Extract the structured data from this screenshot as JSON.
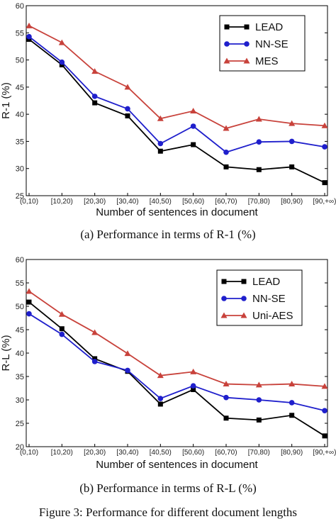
{
  "figure_caption": "Figure 3: Performance for different document lengths",
  "chart_data": [
    {
      "type": "line",
      "caption": "(a) Performance in terms of R-1 (%)",
      "xlabel": "Number of sentences in document",
      "ylabel": "R-1 (%)",
      "ylim": [
        25,
        60
      ],
      "yticks": [
        25,
        30,
        35,
        40,
        45,
        50,
        55,
        60
      ],
      "categories": [
        "(0,10)",
        "[10,20)",
        "[20,30)",
        "[30,40)",
        "[40,50)",
        "[50,60)",
        "[60,70)",
        "[70,80)",
        "[80,90)",
        "[90,+∞)"
      ],
      "legend_position": "top-right",
      "series": [
        {
          "name": "LEAD",
          "color": "#000000",
          "marker": "square",
          "values": [
            53.8,
            49.1,
            42.1,
            39.7,
            33.2,
            34.4,
            30.3,
            29.8,
            30.3,
            27.4
          ]
        },
        {
          "name": "NN-SE",
          "color": "#1f1fcc",
          "marker": "circle",
          "values": [
            54.3,
            49.6,
            43.3,
            41.0,
            34.6,
            37.8,
            33.0,
            34.9,
            35.0,
            34.0
          ]
        },
        {
          "name": "MES",
          "color": "#c8423b",
          "marker": "triangle",
          "values": [
            56.3,
            53.2,
            47.9,
            45.0,
            39.2,
            40.6,
            37.4,
            39.1,
            38.3,
            37.9
          ]
        }
      ]
    },
    {
      "type": "line",
      "caption": "(b) Performance in terms of R-L (%)",
      "xlabel": "Number of sentences in document",
      "ylabel": "R-L (%)",
      "ylim": [
        20,
        60
      ],
      "yticks": [
        20,
        25,
        30,
        35,
        40,
        45,
        50,
        55,
        60
      ],
      "categories": [
        "(0,10)",
        "[10,20)",
        "[20,30)",
        "[30,40)",
        "[40,50)",
        "[50,60)",
        "[60,70)",
        "[70,80)",
        "[80,90)",
        "[90,+∞)"
      ],
      "legend_position": "top-right",
      "series": [
        {
          "name": "LEAD",
          "color": "#000000",
          "marker": "square",
          "values": [
            50.9,
            45.2,
            38.8,
            36.1,
            29.1,
            32.2,
            26.1,
            25.7,
            26.7,
            22.3
          ]
        },
        {
          "name": "NN-SE",
          "color": "#1f1fcc",
          "marker": "circle",
          "values": [
            48.4,
            44.0,
            38.2,
            36.3,
            30.3,
            33.0,
            30.5,
            30.0,
            29.4,
            27.7
          ]
        },
        {
          "name": "Uni-AES",
          "color": "#c8423b",
          "marker": "triangle",
          "values": [
            53.2,
            48.3,
            44.4,
            39.9,
            35.2,
            36.0,
            33.4,
            33.2,
            33.4,
            32.9
          ]
        }
      ]
    }
  ]
}
